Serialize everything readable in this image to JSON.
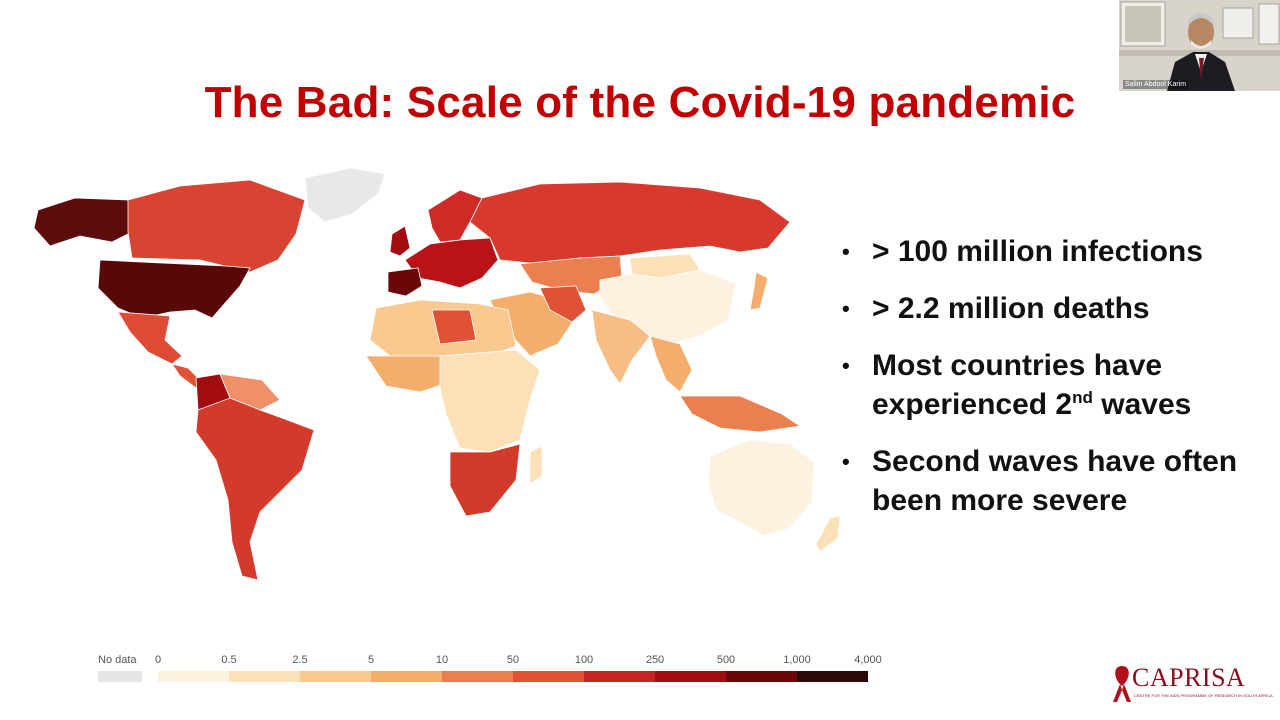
{
  "slide": {
    "title": "The Bad: Scale of the Covid-19 pandemic",
    "bullets": [
      {
        "text": "> 100 million infections"
      },
      {
        "text": "> 2.2 million deaths"
      },
      {
        "text_a": "Most countries have experienced  2",
        "sup": "nd",
        "text_b": " waves"
      },
      {
        "text": "Second waves have often been more severe"
      }
    ],
    "bullet_symbol": "•"
  },
  "video": {
    "participant_name": "Salim Abdool Karim"
  },
  "legend": {
    "no_data_label": "No data",
    "ticks": [
      "0",
      "0.5",
      "2.5",
      "5",
      "10",
      "50",
      "100",
      "250",
      "500",
      "1,000",
      "4,000"
    ],
    "colors": {
      "no_data": "#e6e6e6",
      "bins": [
        "#fdf1df",
        "#fbe0b8",
        "#f9c990",
        "#f5ad6c",
        "#ec7f4f",
        "#e05236",
        "#c72522",
        "#a30d12",
        "#6b0709",
        "#2a0a0a"
      ]
    }
  },
  "map_colors": {
    "usa": "#5a0707",
    "alaska": "#5e0b0b",
    "canada": "#d94332",
    "greenland": "#e8e8e8",
    "mexico": "#dd4a36",
    "central_america": "#e05236",
    "colombia": "#a30d12",
    "venezuela": "#f0906a",
    "south_america": "#d43a2b",
    "russia": "#d73a2d",
    "europe": "#b81417",
    "spain_portugal": "#6a0708",
    "uk": "#a30d12",
    "scandinavia": "#d02a26",
    "kazakhstan_central_asia": "#ec7f4f",
    "china": "#fdf1df",
    "mongolia": "#fbe0b8",
    "middle_east": "#f5ad6c",
    "iran": "#e05236",
    "north_africa": "#f9c990",
    "libya": "#e05236",
    "sub_saharan": "#fbe0b8",
    "west_africa": "#f5ad6c",
    "southern_africa": "#d13a29",
    "india": "#f7bd82",
    "se_asia": "#f5ad6c",
    "indonesia": "#ec7f4f",
    "australia": "#fdf1df",
    "japan": "#f5ad6c",
    "madagascar": "#fbe0b8",
    "new_zealand": "#fbe0b8"
  },
  "logo": {
    "name": "CAPRISA",
    "tagline": "CENTRE FOR THE AIDS PROGRAMME OF RESEARCH IN SOUTH AFRICA",
    "color": "#8b0d1a"
  }
}
